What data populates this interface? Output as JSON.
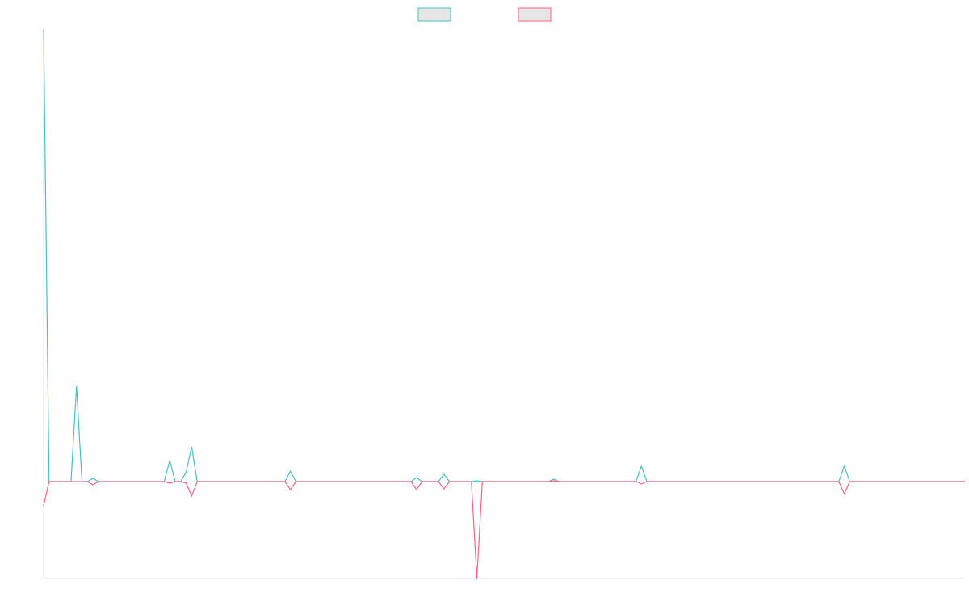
{
  "chart_data": {
    "type": "line",
    "x": [
      0,
      1,
      5,
      6,
      7,
      8,
      9,
      10,
      22,
      23,
      24,
      25,
      26,
      27,
      28,
      44,
      45,
      46,
      67,
      68,
      69,
      72,
      73,
      74,
      78,
      79,
      80,
      92,
      93,
      94,
      108,
      109,
      110,
      145,
      146,
      147,
      168
    ],
    "series": [
      {
        "color": "#4bc0c0",
        "values": [
          560,
          0,
          0,
          118,
          0,
          0,
          4,
          0,
          0,
          26,
          0,
          0,
          12,
          43,
          0,
          0,
          13,
          0,
          0,
          5,
          0,
          0,
          9,
          0,
          0,
          1,
          0,
          0,
          3,
          0,
          0,
          19,
          0,
          0,
          19,
          0,
          0
        ]
      },
      {
        "color": "#ff6384",
        "values": [
          -30,
          0,
          0,
          0,
          0,
          0,
          -4,
          0,
          0,
          -2,
          0,
          0,
          -2,
          -18,
          0,
          0,
          -10,
          0,
          0,
          -10,
          0,
          0,
          -9,
          0,
          0,
          -120,
          0,
          0,
          1,
          0,
          0,
          -3,
          0,
          0,
          -15,
          0,
          0
        ]
      }
    ],
    "xlim": [
      0,
      168
    ],
    "ylim": [
      -120,
      560
    ],
    "legend": "top"
  }
}
